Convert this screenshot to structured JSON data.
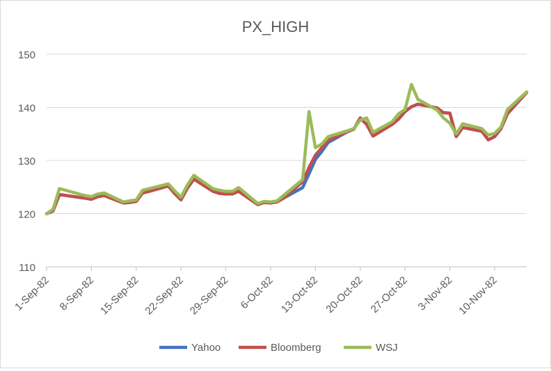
{
  "chart_data": {
    "type": "line",
    "title": "PX_HIGH",
    "xlabel": "",
    "ylabel": "",
    "ylim": [
      110,
      150
    ],
    "yticks": [
      110,
      120,
      130,
      140,
      150
    ],
    "x_range": [
      "1982-09-01",
      "1982-11-15"
    ],
    "x_tick_labels": [
      "1-Sep-82",
      "8-Sep-82",
      "15-Sep-82",
      "22-Sep-82",
      "29-Sep-82",
      "6-Oct-82",
      "13-Oct-82",
      "20-Oct-82",
      "27-Oct-82",
      "3-Nov-82",
      "10-Nov-82"
    ],
    "x_tick_dates": [
      "1982-09-01",
      "1982-09-08",
      "1982-09-15",
      "1982-09-22",
      "1982-09-29",
      "1982-10-06",
      "1982-10-13",
      "1982-10-20",
      "1982-10-27",
      "1982-11-03",
      "1982-11-10"
    ],
    "grid": true,
    "legend_position": "bottom",
    "series": [
      {
        "name": "Yahoo",
        "color": "#4472c4",
        "points": [
          [
            "1982-09-01",
            120.0
          ],
          [
            "1982-09-02",
            120.5
          ],
          [
            "1982-09-03",
            123.6
          ],
          [
            "1982-09-07",
            122.9
          ],
          [
            "1982-09-08",
            122.7
          ],
          [
            "1982-09-09",
            123.2
          ],
          [
            "1982-09-10",
            123.4
          ],
          [
            "1982-09-13",
            122.0
          ],
          [
            "1982-09-14",
            122.1
          ],
          [
            "1982-09-15",
            122.3
          ],
          [
            "1982-09-16",
            123.9
          ],
          [
            "1982-09-17",
            124.2
          ],
          [
            "1982-09-20",
            125.2
          ],
          [
            "1982-09-21",
            123.8
          ],
          [
            "1982-09-22",
            122.6
          ],
          [
            "1982-09-23",
            124.8
          ],
          [
            "1982-09-24",
            126.5
          ],
          [
            "1982-09-27",
            124.2
          ],
          [
            "1982-09-28",
            123.8
          ],
          [
            "1982-09-29",
            123.7
          ],
          [
            "1982-09-30",
            123.7
          ],
          [
            "1982-10-01",
            124.2
          ],
          [
            "1982-10-04",
            121.7
          ],
          [
            "1982-10-05",
            122.1
          ],
          [
            "1982-10-06",
            122.0
          ],
          [
            "1982-10-07",
            122.2
          ],
          [
            "1982-10-08",
            122.9
          ],
          [
            "1982-10-11",
            124.9
          ],
          [
            "1982-10-12",
            127.5
          ],
          [
            "1982-10-13",
            130.2
          ],
          [
            "1982-10-14",
            131.7
          ],
          [
            "1982-10-15",
            133.4
          ],
          [
            "1982-10-18",
            135.4
          ],
          [
            "1982-10-19",
            135.9
          ],
          [
            "1982-10-20",
            138.0
          ],
          [
            "1982-10-21",
            136.8
          ],
          [
            "1982-10-22",
            134.6
          ],
          [
            "1982-10-25",
            136.8
          ],
          [
            "1982-10-26",
            137.8
          ],
          [
            "1982-10-27",
            139.2
          ],
          [
            "1982-10-28",
            140.1
          ],
          [
            "1982-10-29",
            140.6
          ],
          [
            "1982-11-01",
            139.9
          ],
          [
            "1982-11-02",
            139.0
          ],
          [
            "1982-11-03",
            138.9
          ],
          [
            "1982-11-04",
            134.5
          ],
          [
            "1982-11-05",
            136.2
          ],
          [
            "1982-11-08",
            135.5
          ],
          [
            "1982-11-09",
            133.9
          ],
          [
            "1982-11-10",
            134.5
          ],
          [
            "1982-11-11",
            136.0
          ],
          [
            "1982-11-12",
            138.8
          ],
          [
            "1982-11-15",
            142.8
          ]
        ]
      },
      {
        "name": "Bloomberg",
        "color": "#c0504d",
        "points": [
          [
            "1982-09-01",
            120.0
          ],
          [
            "1982-09-02",
            120.5
          ],
          [
            "1982-09-03",
            123.6
          ],
          [
            "1982-09-07",
            122.9
          ],
          [
            "1982-09-08",
            122.7
          ],
          [
            "1982-09-09",
            123.2
          ],
          [
            "1982-09-10",
            123.4
          ],
          [
            "1982-09-13",
            122.0
          ],
          [
            "1982-09-14",
            122.1
          ],
          [
            "1982-09-15",
            122.3
          ],
          [
            "1982-09-16",
            123.9
          ],
          [
            "1982-09-17",
            124.2
          ],
          [
            "1982-09-20",
            125.2
          ],
          [
            "1982-09-21",
            123.8
          ],
          [
            "1982-09-22",
            122.6
          ],
          [
            "1982-09-23",
            124.8
          ],
          [
            "1982-09-24",
            126.5
          ],
          [
            "1982-09-27",
            124.2
          ],
          [
            "1982-09-28",
            123.8
          ],
          [
            "1982-09-29",
            123.7
          ],
          [
            "1982-09-30",
            123.7
          ],
          [
            "1982-10-01",
            124.2
          ],
          [
            "1982-10-04",
            121.7
          ],
          [
            "1982-10-05",
            122.1
          ],
          [
            "1982-10-06",
            122.0
          ],
          [
            "1982-10-07",
            122.2
          ],
          [
            "1982-10-08",
            122.9
          ],
          [
            "1982-10-11",
            126.0
          ],
          [
            "1982-10-12",
            128.7
          ],
          [
            "1982-10-13",
            131.0
          ],
          [
            "1982-10-14",
            132.4
          ],
          [
            "1982-10-15",
            133.8
          ],
          [
            "1982-10-18",
            135.4
          ],
          [
            "1982-10-19",
            135.9
          ],
          [
            "1982-10-20",
            138.0
          ],
          [
            "1982-10-21",
            136.8
          ],
          [
            "1982-10-22",
            134.6
          ],
          [
            "1982-10-25",
            136.8
          ],
          [
            "1982-10-26",
            137.8
          ],
          [
            "1982-10-27",
            139.2
          ],
          [
            "1982-10-28",
            140.1
          ],
          [
            "1982-10-29",
            140.6
          ],
          [
            "1982-11-01",
            139.9
          ],
          [
            "1982-11-02",
            139.0
          ],
          [
            "1982-11-03",
            138.9
          ],
          [
            "1982-11-04",
            134.5
          ],
          [
            "1982-11-05",
            136.2
          ],
          [
            "1982-11-08",
            135.5
          ],
          [
            "1982-11-09",
            133.9
          ],
          [
            "1982-11-10",
            134.5
          ],
          [
            "1982-11-11",
            136.0
          ],
          [
            "1982-11-12",
            138.8
          ],
          [
            "1982-11-15",
            142.8
          ]
        ]
      },
      {
        "name": "WSJ",
        "color": "#9bbb59",
        "points": [
          [
            "1982-09-01",
            120.0
          ],
          [
            "1982-09-02",
            120.8
          ],
          [
            "1982-09-03",
            124.7
          ],
          [
            "1982-09-07",
            123.4
          ],
          [
            "1982-09-08",
            123.2
          ],
          [
            "1982-09-09",
            123.7
          ],
          [
            "1982-09-10",
            123.9
          ],
          [
            "1982-09-13",
            122.2
          ],
          [
            "1982-09-14",
            122.4
          ],
          [
            "1982-09-15",
            122.6
          ],
          [
            "1982-09-16",
            124.4
          ],
          [
            "1982-09-17",
            124.7
          ],
          [
            "1982-09-20",
            125.6
          ],
          [
            "1982-09-21",
            124.3
          ],
          [
            "1982-09-22",
            123.1
          ],
          [
            "1982-09-23",
            125.4
          ],
          [
            "1982-09-24",
            127.2
          ],
          [
            "1982-09-27",
            124.7
          ],
          [
            "1982-09-28",
            124.4
          ],
          [
            "1982-09-29",
            124.2
          ],
          [
            "1982-09-30",
            124.2
          ],
          [
            "1982-10-01",
            124.9
          ],
          [
            "1982-10-04",
            121.9
          ],
          [
            "1982-10-05",
            122.3
          ],
          [
            "1982-10-06",
            122.2
          ],
          [
            "1982-10-07",
            122.4
          ],
          [
            "1982-10-08",
            123.4
          ],
          [
            "1982-10-11",
            126.4
          ],
          [
            "1982-10-12",
            139.2
          ],
          [
            "1982-10-13",
            132.4
          ],
          [
            "1982-10-14",
            133.1
          ],
          [
            "1982-10-15",
            134.5
          ],
          [
            "1982-10-18",
            135.6
          ],
          [
            "1982-10-19",
            136.0
          ],
          [
            "1982-10-20",
            137.6
          ],
          [
            "1982-10-21",
            138.0
          ],
          [
            "1982-10-22",
            135.3
          ],
          [
            "1982-10-25",
            137.3
          ],
          [
            "1982-10-26",
            138.8
          ],
          [
            "1982-10-27",
            139.6
          ],
          [
            "1982-10-28",
            144.3
          ],
          [
            "1982-10-29",
            141.5
          ],
          [
            "1982-11-01",
            139.5
          ],
          [
            "1982-11-02",
            138.0
          ],
          [
            "1982-11-03",
            137.0
          ],
          [
            "1982-11-04",
            135.0
          ],
          [
            "1982-11-05",
            136.9
          ],
          [
            "1982-11-08",
            136.0
          ],
          [
            "1982-11-09",
            134.8
          ],
          [
            "1982-11-10",
            135.1
          ],
          [
            "1982-11-11",
            136.3
          ],
          [
            "1982-11-12",
            139.6
          ],
          [
            "1982-11-15",
            142.9
          ]
        ]
      }
    ]
  }
}
